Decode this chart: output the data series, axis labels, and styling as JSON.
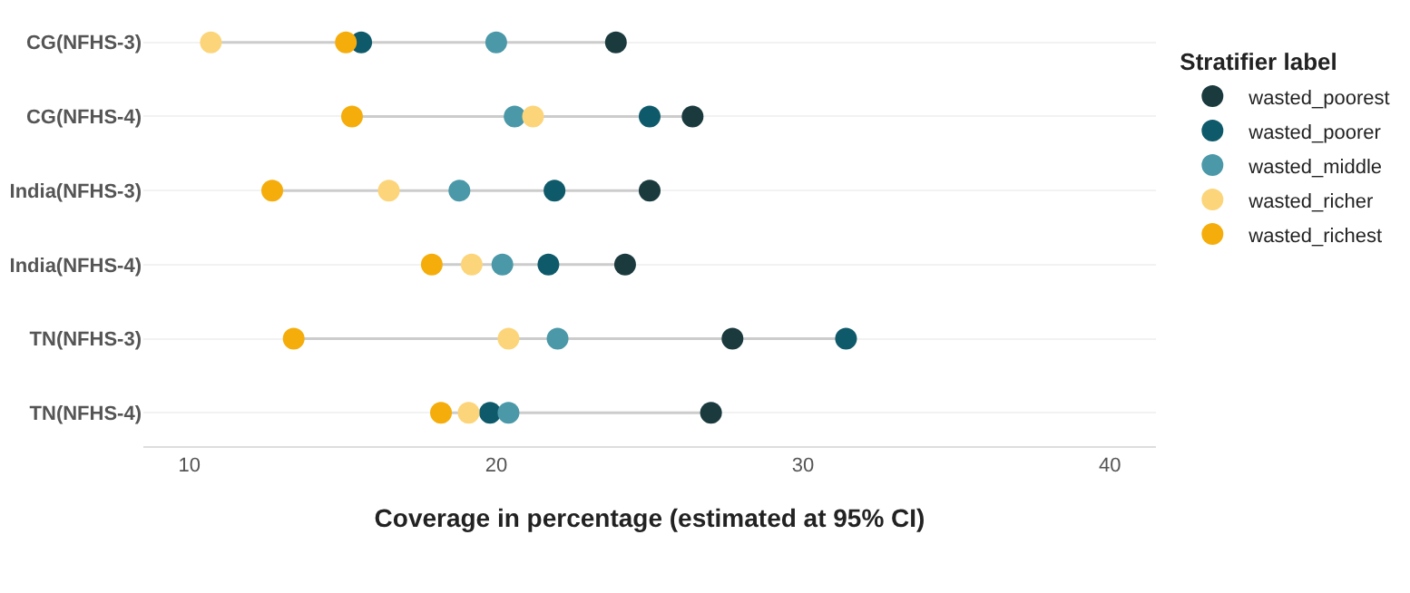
{
  "chart_data": {
    "type": "scatter",
    "xlabel": "Coverage in percentage (estimated at 95% CI)",
    "legend_title": "Stratifier label",
    "categories": [
      "CG(NFHS-3)",
      "CG(NFHS-4)",
      "India(NFHS-3)",
      "India(NFHS-4)",
      "TN(NFHS-3)",
      "TN(NFHS-4)"
    ],
    "series": [
      {
        "name": "wasted_poorest",
        "color": "#1b3a3e",
        "values": [
          23.9,
          26.4,
          25.0,
          24.2,
          27.7,
          27.0
        ]
      },
      {
        "name": "wasted_poorer",
        "color": "#0e5a6a",
        "values": [
          15.6,
          25.0,
          21.9,
          21.7,
          31.4,
          19.8
        ]
      },
      {
        "name": "wasted_middle",
        "color": "#4a98a8",
        "values": [
          20.0,
          20.6,
          18.8,
          20.2,
          22.0,
          20.4
        ]
      },
      {
        "name": "wasted_richer",
        "color": "#fcd57a",
        "values": [
          10.7,
          21.2,
          16.5,
          19.2,
          20.4,
          19.1
        ]
      },
      {
        "name": "wasted_richest",
        "color": "#f5ad0c",
        "values": [
          15.1,
          15.3,
          12.7,
          17.9,
          13.4,
          18.2
        ]
      }
    ],
    "xlim": [
      8.5,
      41.5
    ],
    "xticks": [
      10,
      20,
      30,
      40
    ],
    "grid": "y",
    "legend": "right",
    "marker": "circle",
    "orientation": "horizontal"
  }
}
